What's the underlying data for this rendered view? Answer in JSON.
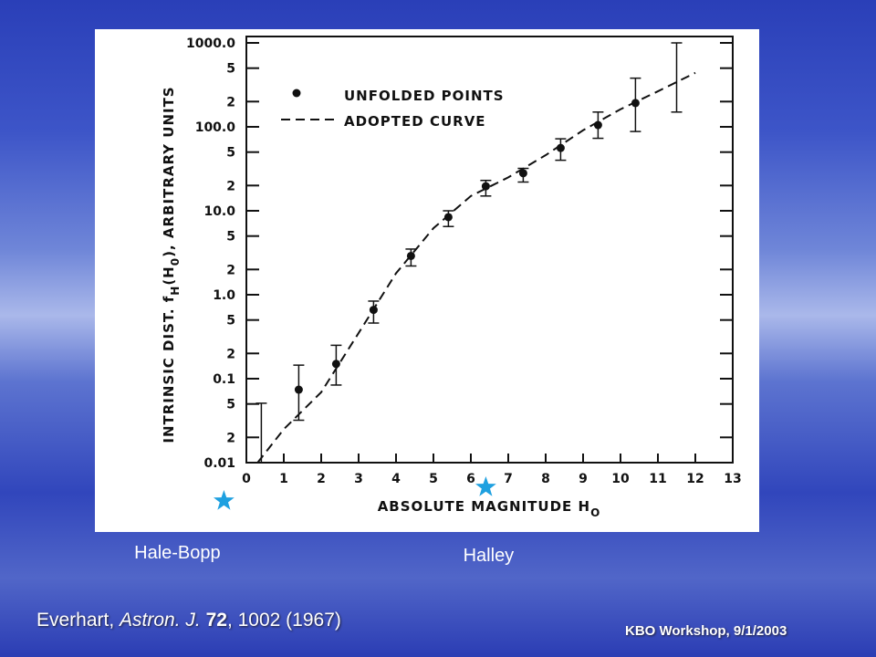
{
  "chart_data": {
    "type": "scatter",
    "xlabel": "ABSOLUTE MAGNITUDE  H",
    "xlabel_sub": "O",
    "ylabel": "INTRINSIC DIST. f",
    "ylabel_sub": "H",
    "ylabel_rest": "(H",
    "ylabel_sub2": "0",
    "ylabel_end": "), ARBITRARY UNITS",
    "xlim": [
      0,
      13
    ],
    "xticks": [
      0,
      1,
      2,
      3,
      4,
      5,
      6,
      7,
      8,
      9,
      10,
      11,
      12,
      13
    ],
    "ylim": [
      0.01,
      1000
    ],
    "log_y": true,
    "yticks": [
      0.01,
      {
        "value": 0.02,
        "label": "2"
      },
      {
        "value": 0.05,
        "label": "5"
      },
      0.1,
      {
        "value": 0.2,
        "label": "2"
      },
      {
        "value": 0.5,
        "label": "5"
      },
      {
        "value": 1,
        "label": "1.0"
      },
      {
        "value": 2,
        "label": "2"
      },
      {
        "value": 5,
        "label": "5"
      },
      {
        "value": 10,
        "label": "10.0"
      },
      {
        "value": 20,
        "label": "2"
      },
      {
        "value": 50,
        "label": "5"
      },
      {
        "value": 100,
        "label": "100.0"
      },
      {
        "value": 200,
        "label": "2"
      },
      {
        "value": 500,
        "label": "5"
      },
      {
        "value": 1000,
        "label": "1000.0"
      }
    ],
    "series": [
      {
        "name": "UNFOLDED POINTS",
        "color": "#111111",
        "x": [
          0.4,
          1.4,
          2.4,
          3.4,
          4.4,
          5.4,
          6.4,
          7.4,
          8.4,
          9.4,
          10.4,
          11.5
        ],
        "values": [
          null,
          0.074,
          0.15,
          0.66,
          2.9,
          8.4,
          19.6,
          28,
          56,
          105,
          192,
          null
        ],
        "err_low": [
          0.01,
          0.032,
          0.084,
          0.46,
          2.2,
          6.5,
          15,
          22,
          40,
          73,
          88,
          150
        ],
        "err_high": [
          0.051,
          0.145,
          0.25,
          0.84,
          3.5,
          10,
          23,
          32,
          72,
          150,
          380,
          1000
        ]
      },
      {
        "name": "ADOPTED CURVE",
        "color": "#111111",
        "dashed": true,
        "x": [
          0.3,
          1,
          2,
          3,
          4,
          5,
          6,
          7,
          8,
          9,
          10,
          11,
          12
        ],
        "values": [
          0.01,
          0.025,
          0.069,
          0.35,
          1.8,
          6.2,
          15,
          25,
          46,
          91,
          162,
          265,
          440
        ]
      }
    ],
    "markers": [
      {
        "label": "Hale-Bopp",
        "x": -0.6
      },
      {
        "label": "Halley",
        "x": 6.4
      }
    ],
    "marker_color": "#1ea0e0"
  },
  "citation": {
    "author": "Everhart, ",
    "journal": "Astron. J.",
    "volume": "72",
    "rest": ", 1002 (1967)"
  },
  "footer": "KBO Workshop, 9/1/2003"
}
